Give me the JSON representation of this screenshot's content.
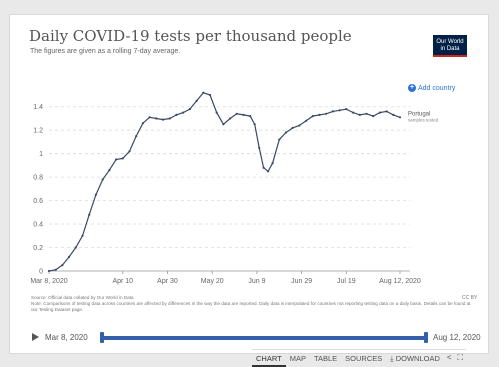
{
  "header": {
    "title": "Daily COVID-19 tests per thousand people",
    "subtitle": "The figures are given as a rolling 7-day average.",
    "logo_line1": "Our World",
    "logo_line2": "in Data"
  },
  "controls": {
    "add_country_label": "Add country"
  },
  "chart_data": {
    "type": "line",
    "title": "Daily COVID-19 tests per thousand people",
    "subtitle": "The figures are given as a rolling 7-day average.",
    "xlabel": "",
    "ylabel": "",
    "x_ticks": [
      "Mar 8, 2020",
      "Apr 10",
      "Apr 30",
      "May 20",
      "Jun 9",
      "Jun 29",
      "Jul 19",
      "Aug 12, 2020"
    ],
    "y_ticks": [
      "0",
      "0.2",
      "0.4",
      "0.6",
      "0.8",
      "1",
      "1.2",
      "1.4"
    ],
    "ylim": [
      0,
      1.5
    ],
    "xlim": [
      "2020-03-08",
      "2020-08-12"
    ],
    "grid": "horizontal dashed",
    "line_color": "#3b4a66",
    "series": [
      {
        "name": "Portugal",
        "sublabel": "samples tested",
        "points": [
          [
            "2020-03-08",
            0.0
          ],
          [
            "2020-03-11",
            0.01
          ],
          [
            "2020-03-14",
            0.05
          ],
          [
            "2020-03-17",
            0.12
          ],
          [
            "2020-03-20",
            0.2
          ],
          [
            "2020-03-23",
            0.3
          ],
          [
            "2020-03-26",
            0.48
          ],
          [
            "2020-03-29",
            0.65
          ],
          [
            "2020-04-01",
            0.78
          ],
          [
            "2020-04-04",
            0.86
          ],
          [
            "2020-04-07",
            0.95
          ],
          [
            "2020-04-10",
            0.96
          ],
          [
            "2020-04-13",
            1.02
          ],
          [
            "2020-04-16",
            1.15
          ],
          [
            "2020-04-19",
            1.26
          ],
          [
            "2020-04-22",
            1.31
          ],
          [
            "2020-04-25",
            1.3
          ],
          [
            "2020-04-28",
            1.29
          ],
          [
            "2020-05-01",
            1.3
          ],
          [
            "2020-05-04",
            1.33
          ],
          [
            "2020-05-07",
            1.35
          ],
          [
            "2020-05-10",
            1.38
          ],
          [
            "2020-05-13",
            1.45
          ],
          [
            "2020-05-16",
            1.52
          ],
          [
            "2020-05-19",
            1.5
          ],
          [
            "2020-05-22",
            1.35
          ],
          [
            "2020-05-25",
            1.25
          ],
          [
            "2020-05-28",
            1.3
          ],
          [
            "2020-05-31",
            1.34
          ],
          [
            "2020-06-03",
            1.33
          ],
          [
            "2020-06-06",
            1.32
          ],
          [
            "2020-06-08",
            1.25
          ],
          [
            "2020-06-10",
            1.05
          ],
          [
            "2020-06-12",
            0.88
          ],
          [
            "2020-06-14",
            0.85
          ],
          [
            "2020-06-16",
            0.92
          ],
          [
            "2020-06-19",
            1.12
          ],
          [
            "2020-06-22",
            1.18
          ],
          [
            "2020-06-25",
            1.22
          ],
          [
            "2020-06-28",
            1.24
          ],
          [
            "2020-07-01",
            1.28
          ],
          [
            "2020-07-04",
            1.32
          ],
          [
            "2020-07-07",
            1.33
          ],
          [
            "2020-07-10",
            1.34
          ],
          [
            "2020-07-13",
            1.36
          ],
          [
            "2020-07-16",
            1.37
          ],
          [
            "2020-07-19",
            1.38
          ],
          [
            "2020-07-22",
            1.35
          ],
          [
            "2020-07-25",
            1.33
          ],
          [
            "2020-07-28",
            1.34
          ],
          [
            "2020-07-31",
            1.32
          ],
          [
            "2020-08-03",
            1.35
          ],
          [
            "2020-08-06",
            1.36
          ],
          [
            "2020-08-09",
            1.33
          ],
          [
            "2020-08-12",
            1.31
          ]
        ]
      }
    ]
  },
  "footer": {
    "note": "Source: Official data collated by Our World in Data\nNote: Comparisons of testing data across countries are affected by differences in the way the data are reported. Daily data is interpolated for countries not reporting testing data on a daily basis. Details can be found at our Testing Dataset page.",
    "license": "CC BY"
  },
  "timeline": {
    "start_label": "Mar 8, 2020",
    "end_label": "Aug 12, 2020"
  },
  "tabs": [
    {
      "label": "CHART",
      "active": true
    },
    {
      "label": "MAP"
    },
    {
      "label": "TABLE"
    },
    {
      "label": "SOURCES"
    },
    {
      "label": "DOWNLOAD",
      "icon": "download-icon"
    }
  ],
  "icons": {
    "share": "share-icon",
    "fullscreen": "fullscreen-icon"
  }
}
